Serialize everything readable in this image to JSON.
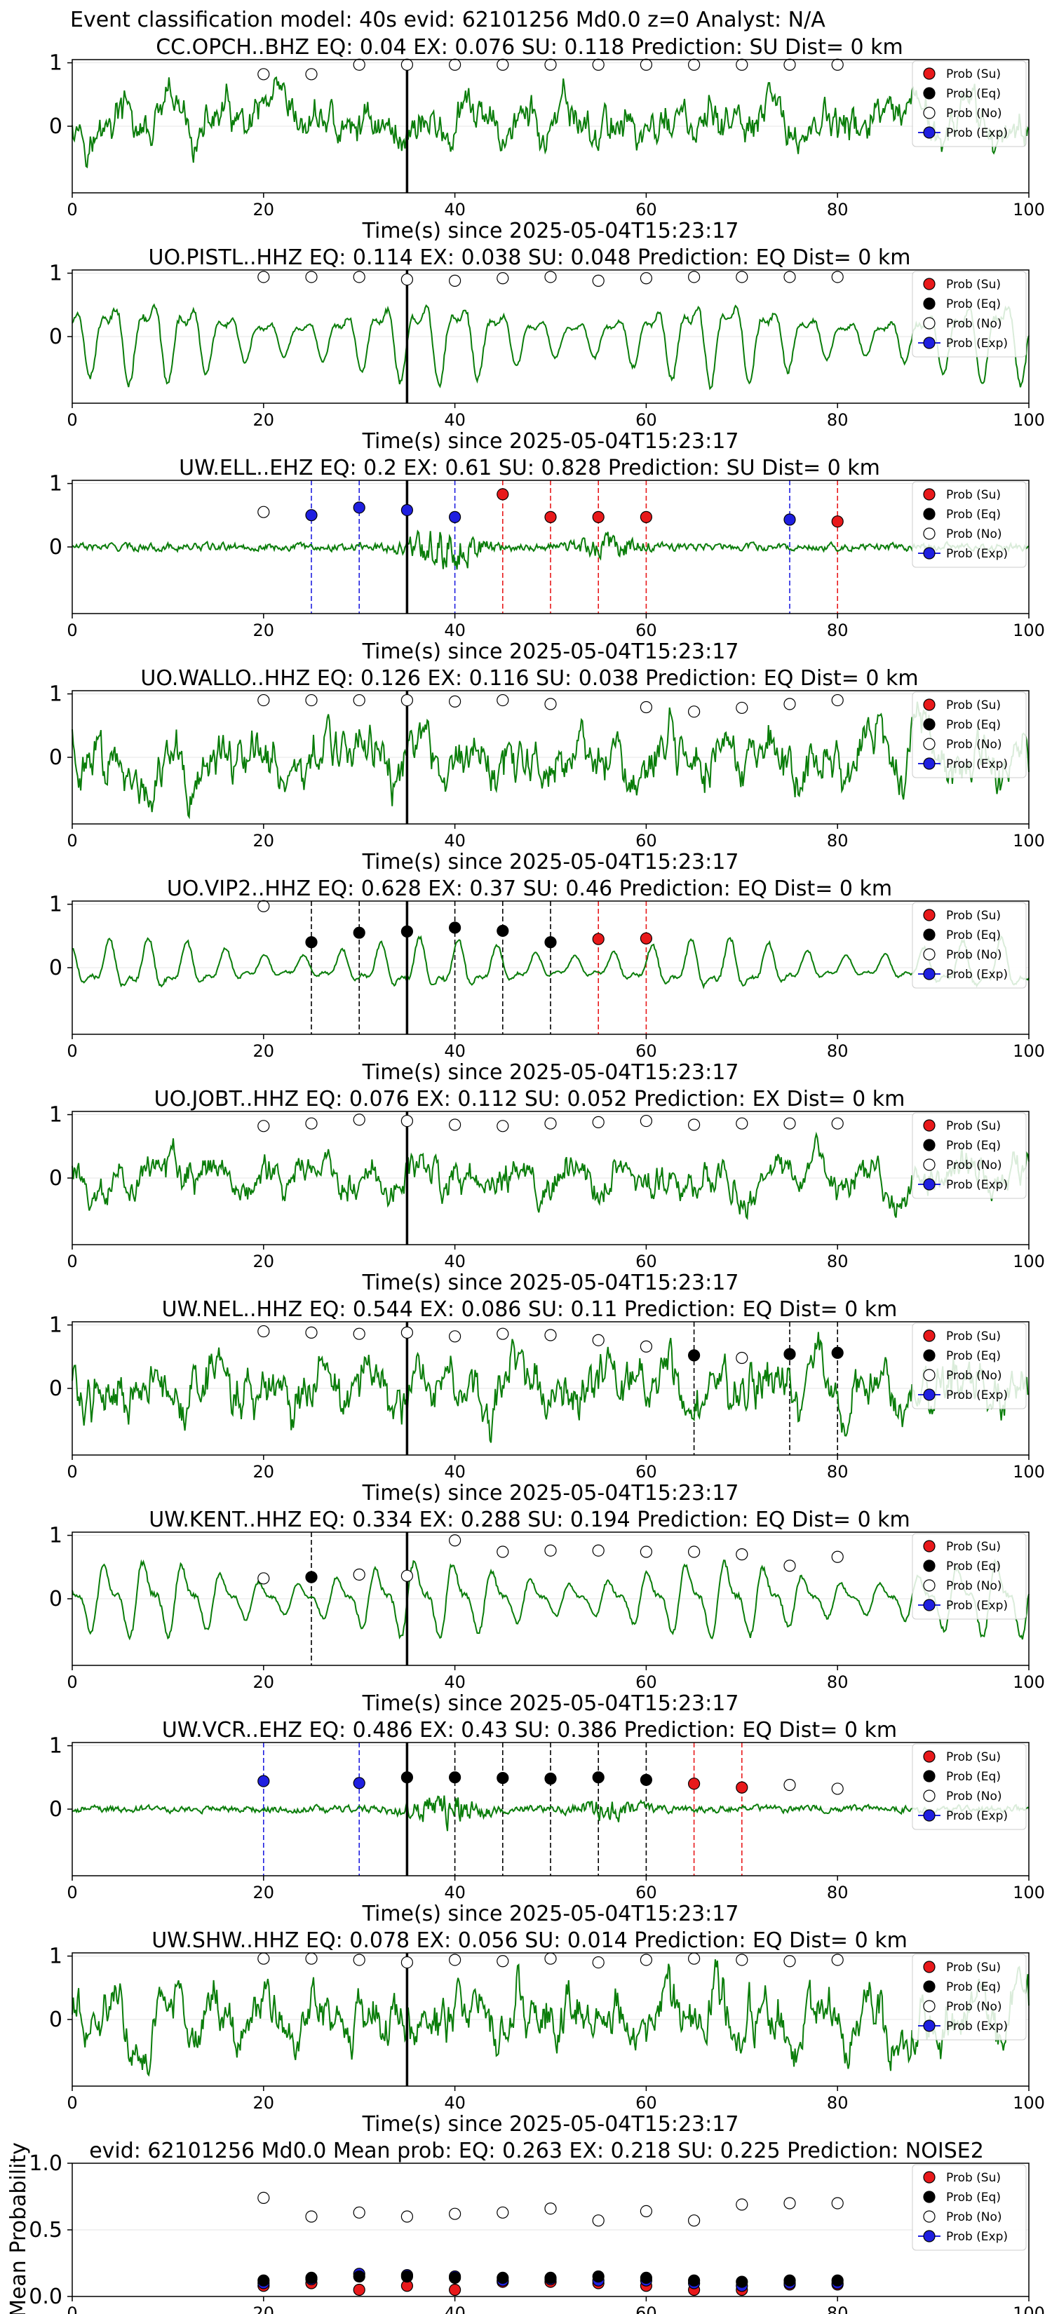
{
  "figure": {
    "suptitle": "Event classification model: 40s evid: 62101256 Md0.0 z=0 Analyst: N/A",
    "xlabel": "Time(s) since 2025-05-04T15:23:17",
    "legend": [
      "Prob (Su)",
      "Prob (Eq)",
      "Prob (No)",
      "Prob (Exp)"
    ],
    "colors": {
      "su": "#e8191b",
      "eq": "#000000",
      "no": "#ffffff",
      "exp": "#1f1fe0",
      "waveform": "#0a7d0a"
    },
    "xticks": [
      "0",
      "20",
      "40",
      "60",
      "80",
      "100"
    ],
    "yticks_trace": [
      "1",
      "0"
    ],
    "event_marker_x": 35
  },
  "chart_data": [
    {
      "type": "line",
      "station": "CC.OPCH..BHZ",
      "title": "CC.OPCH..BHZ   EQ: 0.04   EX: 0.076   SU: 0.118   Prediction: SU    Dist= 0 km",
      "style": "noisy",
      "amp": 0.7,
      "points": [
        {
          "x": 20,
          "y": 0.82,
          "c": "no"
        },
        {
          "x": 25,
          "y": 0.82,
          "c": "no"
        },
        {
          "x": 30,
          "y": 0.97,
          "c": "no"
        },
        {
          "x": 35,
          "y": 0.97,
          "c": "no"
        },
        {
          "x": 40,
          "y": 0.97,
          "c": "no"
        },
        {
          "x": 45,
          "y": 0.97,
          "c": "no"
        },
        {
          "x": 50,
          "y": 0.97,
          "c": "no"
        },
        {
          "x": 55,
          "y": 0.97,
          "c": "no"
        },
        {
          "x": 60,
          "y": 0.97,
          "c": "no"
        },
        {
          "x": 65,
          "y": 0.97,
          "c": "no"
        },
        {
          "x": 70,
          "y": 0.97,
          "c": "no"
        },
        {
          "x": 75,
          "y": 0.97,
          "c": "no"
        },
        {
          "x": 80,
          "y": 0.97,
          "c": "no"
        }
      ]
    },
    {
      "type": "line",
      "station": "UO.PISTL..HHZ",
      "title": "UO.PISTL..HHZ   EQ: 0.114   EX: 0.038   SU: 0.048   Prediction: EQ    Dist= 0 km",
      "style": "smooth",
      "amp": 0.9,
      "points": [
        {
          "x": 20,
          "y": 0.94,
          "c": "no"
        },
        {
          "x": 25,
          "y": 0.94,
          "c": "no"
        },
        {
          "x": 30,
          "y": 0.94,
          "c": "no"
        },
        {
          "x": 35,
          "y": 0.9,
          "c": "no"
        },
        {
          "x": 40,
          "y": 0.88,
          "c": "no"
        },
        {
          "x": 45,
          "y": 0.92,
          "c": "no"
        },
        {
          "x": 50,
          "y": 0.94,
          "c": "no"
        },
        {
          "x": 55,
          "y": 0.88,
          "c": "no"
        },
        {
          "x": 60,
          "y": 0.92,
          "c": "no"
        },
        {
          "x": 65,
          "y": 0.94,
          "c": "no"
        },
        {
          "x": 70,
          "y": 0.94,
          "c": "no"
        },
        {
          "x": 75,
          "y": 0.94,
          "c": "no"
        },
        {
          "x": 80,
          "y": 0.94,
          "c": "no"
        }
      ]
    },
    {
      "type": "line",
      "station": "UW.ELL..EHZ",
      "title": "UW.ELL..EHZ   EQ: 0.2   EX: 0.61   SU: 0.828   Prediction: SU    Dist= 0 km",
      "style": "burst",
      "amp": 0.5,
      "points": [
        {
          "x": 20,
          "y": 0.55,
          "c": "no"
        },
        {
          "x": 25,
          "y": 0.5,
          "c": "exp"
        },
        {
          "x": 30,
          "y": 0.62,
          "c": "exp"
        },
        {
          "x": 35,
          "y": 0.58,
          "c": "exp"
        },
        {
          "x": 40,
          "y": 0.47,
          "c": "exp"
        },
        {
          "x": 45,
          "y": 0.83,
          "c": "su"
        },
        {
          "x": 50,
          "y": 0.47,
          "c": "su"
        },
        {
          "x": 55,
          "y": 0.47,
          "c": "su"
        },
        {
          "x": 60,
          "y": 0.47,
          "c": "su"
        },
        {
          "x": 75,
          "y": 0.43,
          "c": "exp"
        },
        {
          "x": 80,
          "y": 0.4,
          "c": "su"
        }
      ]
    },
    {
      "type": "line",
      "station": "UO.WALLO..HHZ",
      "title": "UO.WALLO..HHZ   EQ: 0.126   EX: 0.116   SU: 0.038   Prediction: EQ    Dist= 0 km",
      "style": "noisy",
      "amp": 0.85,
      "points": [
        {
          "x": 20,
          "y": 0.9,
          "c": "no"
        },
        {
          "x": 25,
          "y": 0.9,
          "c": "no"
        },
        {
          "x": 30,
          "y": 0.9,
          "c": "no"
        },
        {
          "x": 35,
          "y": 0.9,
          "c": "no"
        },
        {
          "x": 40,
          "y": 0.88,
          "c": "no"
        },
        {
          "x": 45,
          "y": 0.9,
          "c": "no"
        },
        {
          "x": 50,
          "y": 0.84,
          "c": "no"
        },
        {
          "x": 60,
          "y": 0.79,
          "c": "no"
        },
        {
          "x": 65,
          "y": 0.72,
          "c": "no"
        },
        {
          "x": 70,
          "y": 0.78,
          "c": "no"
        },
        {
          "x": 75,
          "y": 0.84,
          "c": "no"
        },
        {
          "x": 80,
          "y": 0.9,
          "c": "no"
        }
      ]
    },
    {
      "type": "line",
      "station": "UO.VIP2..HHZ",
      "title": "UO.VIP2..HHZ   EQ: 0.628   EX: 0.37   SU: 0.46   Prediction: EQ    Dist= 0 km",
      "style": "smooth",
      "amp": 0.55,
      "points": [
        {
          "x": 20,
          "y": 0.97,
          "c": "no"
        },
        {
          "x": 25,
          "y": 0.4,
          "c": "eq"
        },
        {
          "x": 30,
          "y": 0.55,
          "c": "eq"
        },
        {
          "x": 35,
          "y": 0.57,
          "c": "eq"
        },
        {
          "x": 40,
          "y": 0.63,
          "c": "eq"
        },
        {
          "x": 45,
          "y": 0.58,
          "c": "eq"
        },
        {
          "x": 50,
          "y": 0.4,
          "c": "eq"
        },
        {
          "x": 55,
          "y": 0.45,
          "c": "su"
        },
        {
          "x": 60,
          "y": 0.46,
          "c": "su"
        }
      ]
    },
    {
      "type": "line",
      "station": "UO.JOBT..HHZ",
      "title": "UO.JOBT..HHZ   EQ: 0.076   EX: 0.112   SU: 0.052   Prediction: EX    Dist= 0 km",
      "style": "noisy",
      "amp": 0.6,
      "points": [
        {
          "x": 20,
          "y": 0.82,
          "c": "no"
        },
        {
          "x": 25,
          "y": 0.86,
          "c": "no"
        },
        {
          "x": 30,
          "y": 0.92,
          "c": "no"
        },
        {
          "x": 35,
          "y": 0.9,
          "c": "no"
        },
        {
          "x": 40,
          "y": 0.84,
          "c": "no"
        },
        {
          "x": 45,
          "y": 0.82,
          "c": "no"
        },
        {
          "x": 50,
          "y": 0.86,
          "c": "no"
        },
        {
          "x": 55,
          "y": 0.88,
          "c": "no"
        },
        {
          "x": 60,
          "y": 0.9,
          "c": "no"
        },
        {
          "x": 65,
          "y": 0.84,
          "c": "no"
        },
        {
          "x": 70,
          "y": 0.86,
          "c": "no"
        },
        {
          "x": 75,
          "y": 0.86,
          "c": "no"
        },
        {
          "x": 80,
          "y": 0.86,
          "c": "no"
        }
      ]
    },
    {
      "type": "line",
      "station": "UW.NEL..HHZ",
      "title": "UW.NEL..HHZ   EQ: 0.544   EX: 0.086   SU: 0.11   Prediction: EQ    Dist= 0 km",
      "style": "noisy",
      "amp": 0.85,
      "points": [
        {
          "x": 20,
          "y": 0.9,
          "c": "no"
        },
        {
          "x": 25,
          "y": 0.88,
          "c": "no"
        },
        {
          "x": 30,
          "y": 0.86,
          "c": "no"
        },
        {
          "x": 35,
          "y": 0.88,
          "c": "no"
        },
        {
          "x": 40,
          "y": 0.82,
          "c": "no"
        },
        {
          "x": 45,
          "y": 0.86,
          "c": "no"
        },
        {
          "x": 50,
          "y": 0.84,
          "c": "no"
        },
        {
          "x": 55,
          "y": 0.76,
          "c": "no"
        },
        {
          "x": 60,
          "y": 0.66,
          "c": "no"
        },
        {
          "x": 65,
          "y": 0.52,
          "c": "eq"
        },
        {
          "x": 70,
          "y": 0.48,
          "c": "no"
        },
        {
          "x": 75,
          "y": 0.54,
          "c": "eq"
        },
        {
          "x": 80,
          "y": 0.56,
          "c": "eq"
        }
      ]
    },
    {
      "type": "line",
      "station": "UW.KENT..HHZ",
      "title": "UW.KENT..HHZ   EQ: 0.334   EX: 0.288   SU: 0.194   Prediction: EQ    Dist= 0 km",
      "style": "smooth",
      "amp": 0.8,
      "points": [
        {
          "x": 20,
          "y": 0.32,
          "c": "no"
        },
        {
          "x": 25,
          "y": 0.34,
          "c": "eq"
        },
        {
          "x": 30,
          "y": 0.38,
          "c": "no"
        },
        {
          "x": 35,
          "y": 0.36,
          "c": "no"
        },
        {
          "x": 40,
          "y": 0.92,
          "c": "no"
        },
        {
          "x": 45,
          "y": 0.74,
          "c": "no"
        },
        {
          "x": 50,
          "y": 0.76,
          "c": "no"
        },
        {
          "x": 55,
          "y": 0.76,
          "c": "no"
        },
        {
          "x": 60,
          "y": 0.74,
          "c": "no"
        },
        {
          "x": 65,
          "y": 0.74,
          "c": "no"
        },
        {
          "x": 70,
          "y": 0.7,
          "c": "no"
        },
        {
          "x": 75,
          "y": 0.52,
          "c": "no"
        },
        {
          "x": 80,
          "y": 0.66,
          "c": "no"
        }
      ]
    },
    {
      "type": "line",
      "station": "UW.VCR..EHZ",
      "title": "UW.VCR..EHZ   EQ: 0.486   EX: 0.43   SU: 0.386   Prediction: EQ    Dist= 0 km",
      "style": "burst",
      "amp": 0.45,
      "points": [
        {
          "x": 20,
          "y": 0.44,
          "c": "exp"
        },
        {
          "x": 30,
          "y": 0.41,
          "c": "exp"
        },
        {
          "x": 35,
          "y": 0.5,
          "c": "eq"
        },
        {
          "x": 40,
          "y": 0.5,
          "c": "eq"
        },
        {
          "x": 45,
          "y": 0.49,
          "c": "eq"
        },
        {
          "x": 50,
          "y": 0.48,
          "c": "eq"
        },
        {
          "x": 55,
          "y": 0.5,
          "c": "eq"
        },
        {
          "x": 60,
          "y": 0.46,
          "c": "eq"
        },
        {
          "x": 65,
          "y": 0.4,
          "c": "su"
        },
        {
          "x": 70,
          "y": 0.34,
          "c": "su"
        },
        {
          "x": 75,
          "y": 0.38,
          "c": "no"
        },
        {
          "x": 80,
          "y": 0.32,
          "c": "no"
        }
      ]
    },
    {
      "type": "line",
      "station": "UW.SHW..HHZ",
      "title": "UW.SHW..HHZ   EQ: 0.078   EX: 0.056   SU: 0.014   Prediction: EQ    Dist= 0 km",
      "style": "noisy",
      "amp": 0.85,
      "points": [
        {
          "x": 20,
          "y": 0.96,
          "c": "no"
        },
        {
          "x": 25,
          "y": 0.96,
          "c": "no"
        },
        {
          "x": 30,
          "y": 0.94,
          "c": "no"
        },
        {
          "x": 35,
          "y": 0.9,
          "c": "no"
        },
        {
          "x": 40,
          "y": 0.94,
          "c": "no"
        },
        {
          "x": 45,
          "y": 0.92,
          "c": "no"
        },
        {
          "x": 50,
          "y": 0.96,
          "c": "no"
        },
        {
          "x": 55,
          "y": 0.9,
          "c": "no"
        },
        {
          "x": 60,
          "y": 0.94,
          "c": "no"
        },
        {
          "x": 65,
          "y": 0.96,
          "c": "no"
        },
        {
          "x": 70,
          "y": 0.94,
          "c": "no"
        },
        {
          "x": 75,
          "y": 0.92,
          "c": "no"
        },
        {
          "x": 80,
          "y": 0.94,
          "c": "no"
        }
      ]
    },
    {
      "type": "scatter",
      "title": "evid: 62101256   Md0.0   Mean prob:   EQ: 0.263   EX: 0.218   SU: 0.225   Prediction: NOISE2",
      "ylabel": "Mean Probability",
      "ylim": [
        0,
        1
      ],
      "yticks": [
        "0.0",
        "0.5",
        "1.0"
      ],
      "x": [
        20,
        25,
        30,
        35,
        40,
        45,
        50,
        55,
        60,
        65,
        70,
        75,
        80
      ],
      "series": [
        {
          "key": "no",
          "values": [
            0.74,
            0.6,
            0.63,
            0.6,
            0.62,
            0.63,
            0.66,
            0.57,
            0.64,
            0.57,
            0.69,
            0.7,
            0.7
          ]
        },
        {
          "key": "su",
          "values": [
            0.08,
            0.1,
            0.05,
            0.08,
            0.05,
            0.11,
            0.11,
            0.1,
            0.08,
            0.05,
            0.05,
            0.09,
            0.09
          ]
        },
        {
          "key": "exp",
          "values": [
            0.1,
            0.13,
            0.17,
            0.16,
            0.15,
            0.12,
            0.13,
            0.12,
            0.12,
            0.1,
            0.08,
            0.1,
            0.1
          ]
        },
        {
          "key": "eq",
          "values": [
            0.12,
            0.14,
            0.15,
            0.15,
            0.14,
            0.14,
            0.14,
            0.15,
            0.14,
            0.12,
            0.11,
            0.12,
            0.12
          ]
        }
      ]
    }
  ]
}
